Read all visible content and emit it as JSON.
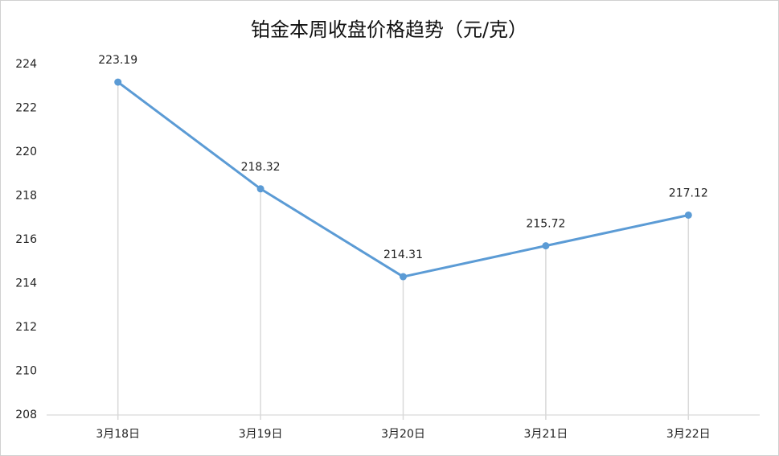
{
  "chart_data": {
    "type": "line",
    "title": "铂金本周收盘价格趋势（元/克）",
    "categories": [
      "3月18日",
      "3月19日",
      "3月20日",
      "3月21日",
      "3月22日"
    ],
    "values": [
      223.19,
      218.32,
      214.31,
      215.72,
      217.12
    ],
    "color": "#5b9bd5",
    "ylim": [
      208,
      224
    ],
    "yticks": [
      208,
      210,
      212,
      214,
      216,
      218,
      220,
      222,
      224
    ],
    "drop_lines": true
  }
}
